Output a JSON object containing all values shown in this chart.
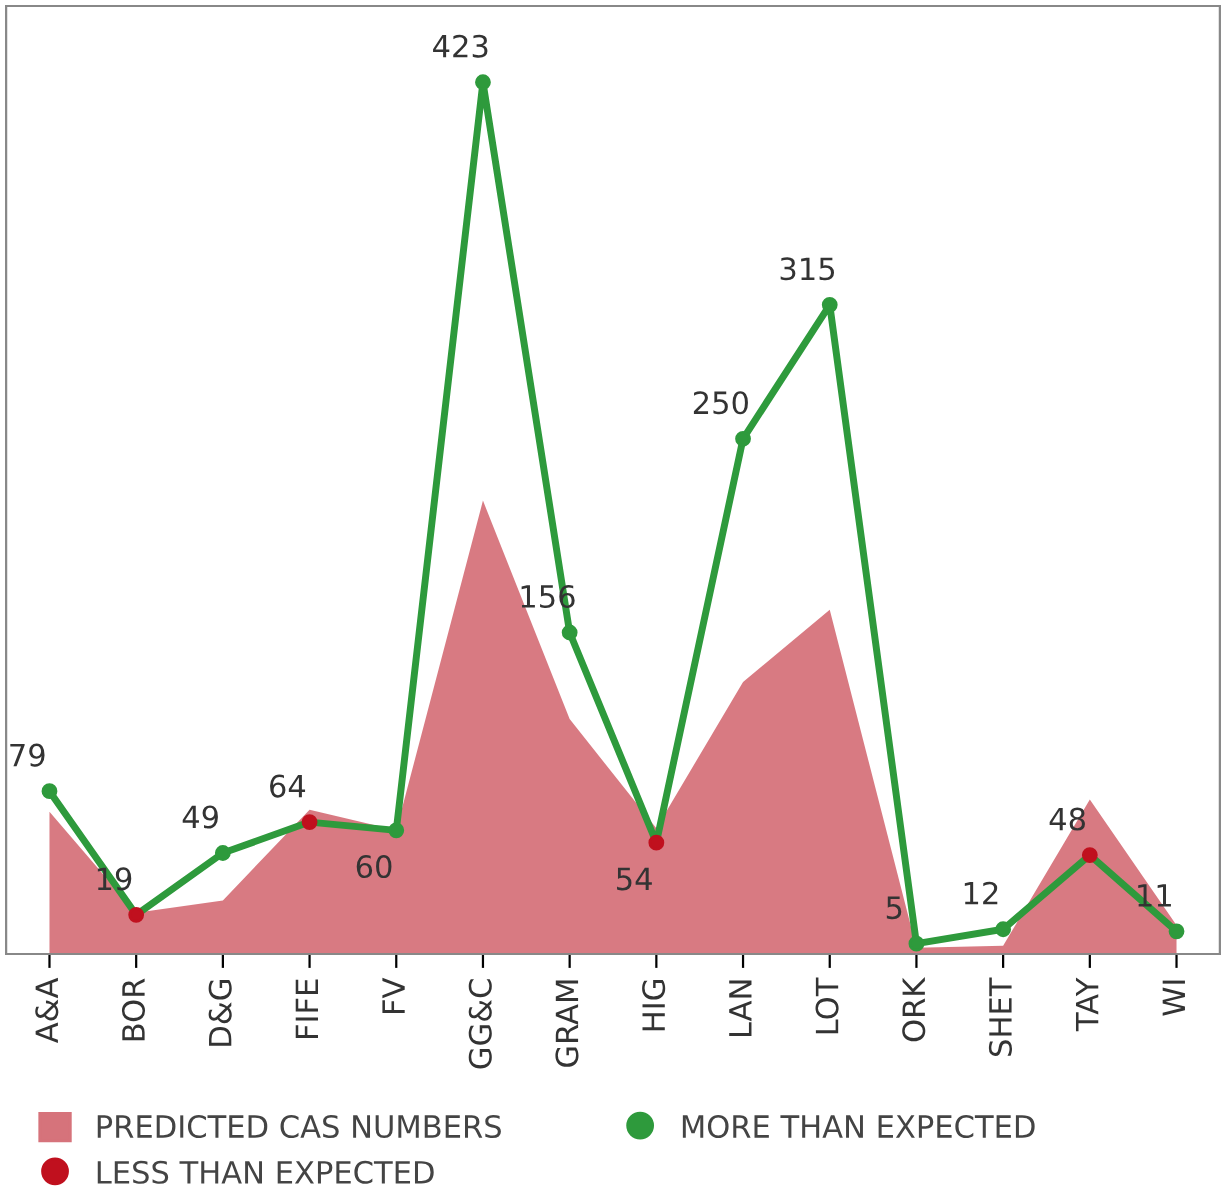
{
  "chart_data": {
    "type": "area",
    "categories": [
      "A&A",
      "BOR",
      "D&G",
      "FIFE",
      "FV",
      "GG&C",
      "GRAM",
      "HIG",
      "LAN",
      "LOT",
      "ORK",
      "SHET",
      "TAY",
      "WI"
    ],
    "ylim": [
      0,
      460
    ],
    "tick_labels": "x",
    "legend": "bottom",
    "series": [
      {
        "name": "PREDICTED CAS NUMBERS",
        "color": "#d6737b",
        "values": [
          69,
          20,
          26,
          70,
          60,
          220,
          114,
          61,
          132,
          167,
          3,
          4,
          75,
          14
        ]
      },
      {
        "type": "line",
        "data_labels": true,
        "color": "#2e9a3c",
        "values": [
          79,
          19,
          49,
          64,
          60,
          423,
          156,
          54,
          250,
          315,
          5,
          12,
          48,
          11
        ]
      },
      {
        "name": "LESS THAN EXPECTED",
        "type": "scatter",
        "color": "#c0101e",
        "values": [
          null,
          19,
          null,
          64,
          null,
          null,
          null,
          54,
          null,
          null,
          null,
          null,
          48,
          null
        ]
      },
      {
        "name": "MORE THAN EXPECTED",
        "type": "scatter",
        "color": "#2e9a3c",
        "values": [
          79,
          null,
          49,
          null,
          60,
          423,
          156,
          null,
          250,
          315,
          5,
          12,
          null,
          11
        ]
      }
    ]
  }
}
